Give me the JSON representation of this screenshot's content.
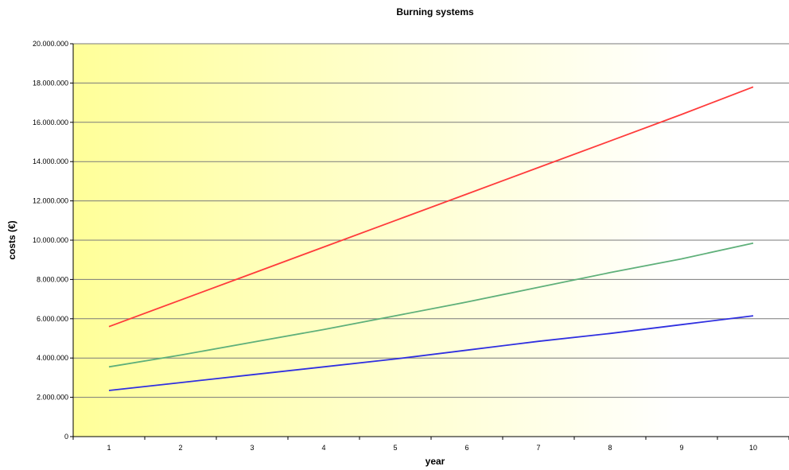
{
  "chart_data": {
    "type": "line",
    "title": "Burning systems",
    "xlabel": "year",
    "ylabel": "costs (€)",
    "x": [
      1,
      2,
      3,
      4,
      5,
      6,
      7,
      8,
      9,
      10
    ],
    "x_tick_labels": [
      "1",
      "2",
      "3",
      "4",
      "5",
      "6",
      "7",
      "8",
      "9",
      "10"
    ],
    "ylim": [
      0,
      20000000
    ],
    "y_ticks": [
      0,
      2000000,
      4000000,
      6000000,
      8000000,
      10000000,
      12000000,
      14000000,
      16000000,
      18000000,
      20000000
    ],
    "y_tick_labels": [
      "0",
      "2.000.000",
      "4.000.000",
      "6.000.000",
      "8.000.000",
      "10.000.000",
      "12.000.000",
      "14.000.000",
      "16.000.000",
      "18.000.000",
      "20.000.000"
    ],
    "grid": true,
    "legend": "none",
    "background_gradient": [
      "#ffff99",
      "#ffffff"
    ],
    "series": [
      {
        "color": "#ff3b3b",
        "values": [
          5600000,
          6950000,
          8300000,
          9650000,
          11000000,
          12350000,
          13700000,
          15050000,
          16400000,
          17800000
        ]
      },
      {
        "color": "#5fb07a",
        "values": [
          3550000,
          4150000,
          4800000,
          5450000,
          6150000,
          6850000,
          7600000,
          8350000,
          9050000,
          9850000
        ]
      },
      {
        "color": "#3030e0",
        "values": [
          2350000,
          2750000,
          3150000,
          3550000,
          3950000,
          4400000,
          4850000,
          5250000,
          5700000,
          6150000
        ]
      }
    ]
  }
}
